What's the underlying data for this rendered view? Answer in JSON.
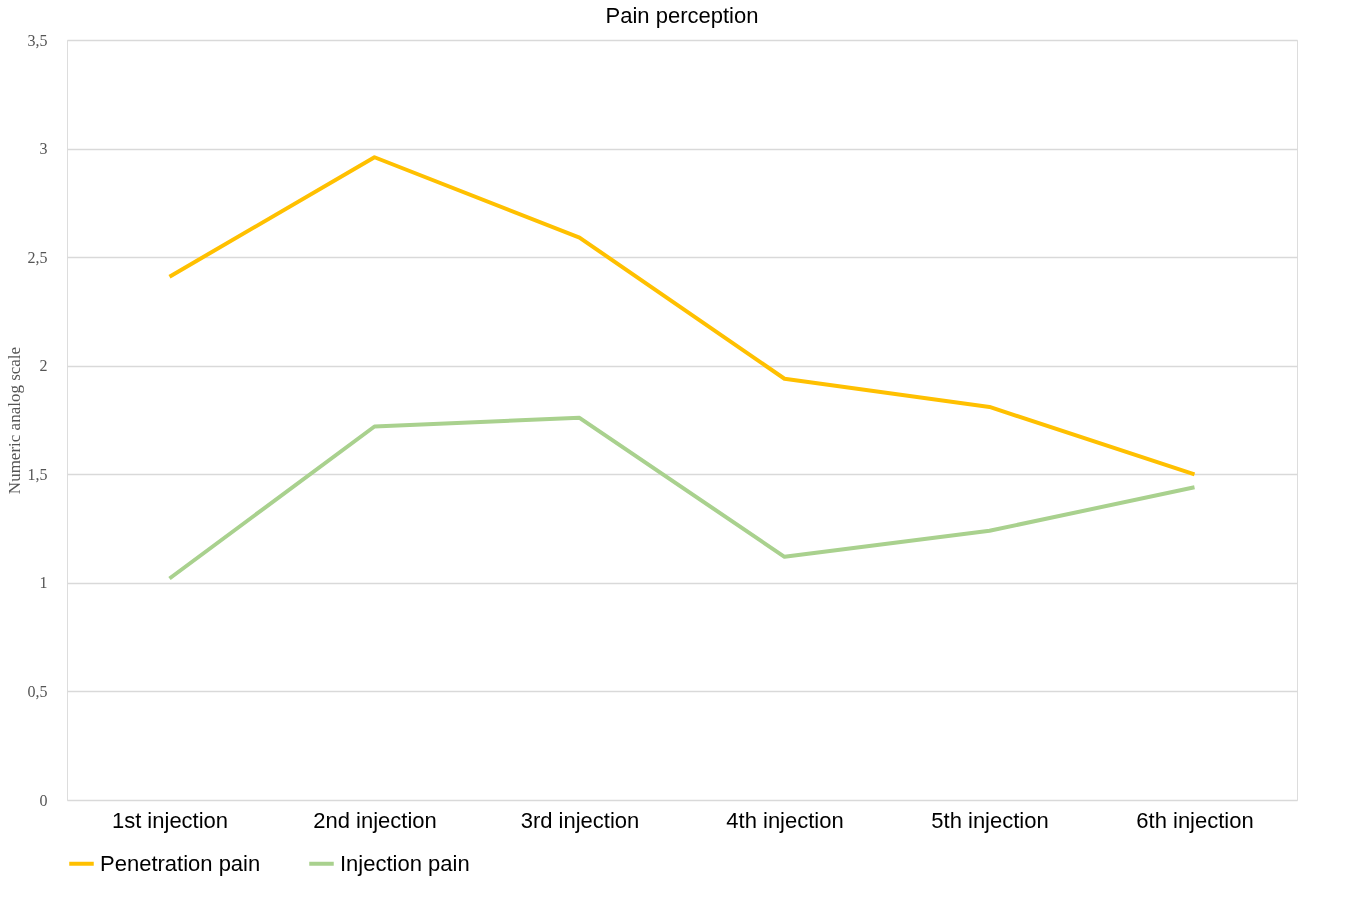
{
  "chart_data": {
    "type": "line",
    "title": "Pain perception",
    "ylabel": "Numeric analog scale",
    "categories": [
      "1st injection",
      "2nd injection",
      "3rd injection",
      "4th injection",
      "5th injection",
      "6th injection"
    ],
    "series": [
      {
        "name": "Penetration pain",
        "color": "#ffc000",
        "values": [
          2.41,
          2.96,
          2.59,
          1.94,
          1.81,
          1.5
        ]
      },
      {
        "name": "Injection pain",
        "color": "#a9d18e",
        "values": [
          1.02,
          1.72,
          1.76,
          1.12,
          1.24,
          1.44
        ]
      }
    ],
    "ylim": [
      0,
      3.5
    ],
    "yticks": [
      0,
      {
        "value": 0.5,
        "label": "0,5"
      },
      1,
      {
        "value": 1.5,
        "label": "1,5"
      },
      2,
      {
        "value": 2.5,
        "label": "2,5"
      },
      3,
      {
        "value": 3.5,
        "label": "3,5"
      }
    ],
    "grid": "y",
    "legend": "bottom",
    "marker": "none",
    "line_style": "solid"
  }
}
